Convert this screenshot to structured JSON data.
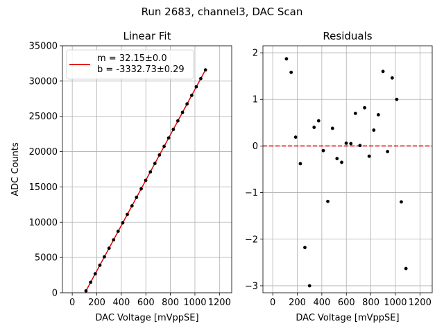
{
  "suptitle": "Run 2683, channel3, DAC Scan",
  "chart_data": [
    {
      "type": "scatter",
      "title": "Linear Fit",
      "xlabel": "DAC Voltage [mVppSE]",
      "ylabel": "ADC Counts",
      "xlim": [
        -80,
        1300
      ],
      "ylim": [
        0,
        35000
      ],
      "xticks": [
        0,
        200,
        400,
        600,
        800,
        1000,
        1200
      ],
      "yticks": [
        0,
        5000,
        10000,
        15000,
        20000,
        25000,
        30000,
        35000
      ],
      "grid": true,
      "legend": {
        "placement": "top-left",
        "entries": [
          "m = 32.15±0.0",
          "b = -3332.73±0.29"
        ]
      },
      "fit": {
        "slope": 32.15,
        "intercept": -3332.73,
        "color": "#e00000"
      },
      "points": {
        "color": "#000000",
        "x": [
          112,
          150,
          187,
          225,
          262,
          300,
          337,
          374,
          412,
          449,
          487,
          524,
          562,
          599,
          637,
          674,
          711,
          749,
          786,
          824,
          861,
          899,
          936,
          974,
          1011,
          1048,
          1086
        ],
        "y": [
          268,
          1490,
          2690,
          3900,
          5090,
          6310,
          7500,
          8710,
          9910,
          11110,
          12320,
          13520,
          14730,
          15930,
          17130,
          18330,
          19530,
          20750,
          21940,
          23150,
          24360,
          25570,
          26760,
          27980,
          29190,
          30360,
          31580
        ]
      }
    },
    {
      "type": "scatter",
      "title": "Residuals",
      "xlabel": "DAC Voltage [mVppSE]",
      "ylabel": "",
      "xlim": [
        -80,
        1300
      ],
      "ylim": [
        -3.15,
        2.15
      ],
      "xticks": [
        0,
        200,
        400,
        600,
        800,
        1000,
        1200
      ],
      "yticks": [
        -3,
        -2,
        -1,
        0,
        1,
        2
      ],
      "ytick_labels": [
        "−3",
        "−2",
        "−1",
        "0",
        "1",
        "2"
      ],
      "grid": true,
      "reference_line": {
        "y": 0,
        "style": "dashed",
        "color": "#e00000"
      },
      "points": {
        "color": "#000000",
        "x": [
          112,
          150,
          187,
          225,
          262,
          300,
          337,
          374,
          412,
          449,
          487,
          524,
          562,
          599,
          637,
          674,
          711,
          749,
          786,
          824,
          861,
          899,
          936,
          974,
          1011,
          1048,
          1086
        ],
        "y": [
          1.87,
          1.58,
          0.19,
          -0.38,
          -2.18,
          -3.0,
          0.4,
          0.54,
          -0.1,
          -1.19,
          0.38,
          -0.27,
          -0.35,
          0.06,
          0.05,
          0.7,
          0.01,
          0.82,
          -0.22,
          0.34,
          0.67,
          1.6,
          -0.12,
          1.46,
          1.0,
          -1.2,
          -2.63
        ]
      }
    }
  ]
}
